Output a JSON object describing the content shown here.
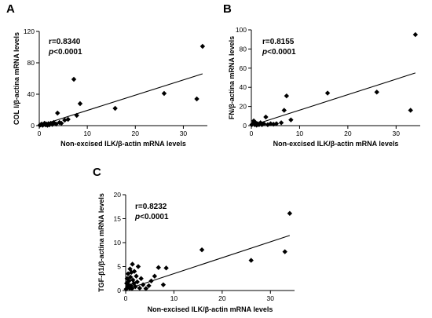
{
  "chart_data": [
    {
      "type": "scatter",
      "panel_label": "A",
      "xlabel": "Non-excised ILK/β-actin mRNA levels",
      "ylabel": "COL I/β-actina mRNA levels",
      "xlim": [
        0,
        35
      ],
      "ylim": [
        0,
        120
      ],
      "xticks": [
        "0",
        "10",
        "20",
        "30"
      ],
      "yticks": [
        "0",
        "40",
        "80",
        "120"
      ],
      "x_tick_values": [
        0,
        10,
        20,
        30
      ],
      "y_tick_values": [
        0,
        40,
        80,
        120
      ],
      "stats": {
        "r": "r=0.8340",
        "p_letter": "p",
        "p_rest": "<0.0001"
      },
      "regression": {
        "x": [
          0,
          34
        ],
        "y": [
          0,
          66
        ]
      },
      "points": [
        {
          "x": 0.1,
          "y": 0.5
        },
        {
          "x": 0.3,
          "y": 1
        },
        {
          "x": 0.5,
          "y": 2
        },
        {
          "x": 0.7,
          "y": 0.5
        },
        {
          "x": 0.9,
          "y": 1.5
        },
        {
          "x": 1.1,
          "y": 3
        },
        {
          "x": 1.3,
          "y": 1
        },
        {
          "x": 1.5,
          "y": 2
        },
        {
          "x": 1.7,
          "y": 0.5
        },
        {
          "x": 1.9,
          "y": 2.5
        },
        {
          "x": 2.1,
          "y": 1
        },
        {
          "x": 2.4,
          "y": 3
        },
        {
          "x": 2.7,
          "y": 1.5
        },
        {
          "x": 3.0,
          "y": 4
        },
        {
          "x": 3.5,
          "y": 2
        },
        {
          "x": 3.8,
          "y": 16
        },
        {
          "x": 4.2,
          "y": 4
        },
        {
          "x": 4.6,
          "y": 3
        },
        {
          "x": 5.3,
          "y": 7
        },
        {
          "x": 6.0,
          "y": 8
        },
        {
          "x": 7.2,
          "y": 59
        },
        {
          "x": 7.8,
          "y": 13
        },
        {
          "x": 8.5,
          "y": 28
        },
        {
          "x": 15.8,
          "y": 22
        },
        {
          "x": 26.0,
          "y": 41
        },
        {
          "x": 32.8,
          "y": 34
        },
        {
          "x": 34.0,
          "y": 101
        }
      ]
    },
    {
      "type": "scatter",
      "panel_label": "B",
      "xlabel": "Non-excised ILK/β-actin mRNA levels",
      "ylabel": "FN/β-actina mRNA levels",
      "xlim": [
        0,
        35
      ],
      "ylim": [
        0,
        100
      ],
      "xticks": [
        "0",
        "10",
        "20",
        "30"
      ],
      "yticks": [
        "0",
        "20",
        "40",
        "60",
        "80",
        "100"
      ],
      "x_tick_values": [
        0,
        10,
        20,
        30
      ],
      "y_tick_values": [
        0,
        20,
        40,
        60,
        80,
        100
      ],
      "stats": {
        "r": "r=0.8155",
        "p_letter": "p",
        "p_rest": "<0.0001"
      },
      "regression": {
        "x": [
          0,
          34
        ],
        "y": [
          0,
          55
        ]
      },
      "points": [
        {
          "x": 0.1,
          "y": 1
        },
        {
          "x": 0.3,
          "y": 2
        },
        {
          "x": 0.5,
          "y": 5
        },
        {
          "x": 0.7,
          "y": 1
        },
        {
          "x": 0.9,
          "y": 3
        },
        {
          "x": 1.1,
          "y": 0.5
        },
        {
          "x": 1.3,
          "y": 2
        },
        {
          "x": 1.6,
          "y": 1
        },
        {
          "x": 1.9,
          "y": 3
        },
        {
          "x": 2.2,
          "y": 1
        },
        {
          "x": 2.6,
          "y": 2
        },
        {
          "x": 3.0,
          "y": 9
        },
        {
          "x": 3.4,
          "y": 1
        },
        {
          "x": 4.0,
          "y": 2
        },
        {
          "x": 4.6,
          "y": 1.5
        },
        {
          "x": 5.2,
          "y": 2
        },
        {
          "x": 6.2,
          "y": 3
        },
        {
          "x": 6.8,
          "y": 16
        },
        {
          "x": 7.3,
          "y": 31
        },
        {
          "x": 8.2,
          "y": 6
        },
        {
          "x": 15.8,
          "y": 34
        },
        {
          "x": 26.0,
          "y": 35
        },
        {
          "x": 33.0,
          "y": 16
        },
        {
          "x": 34.0,
          "y": 95
        }
      ]
    },
    {
      "type": "scatter",
      "panel_label": "C",
      "xlabel": "Non-excised ILK/β-actin mRNA levels",
      "ylabel": "TGF-β1/β-actina mRNA levels",
      "xlim": [
        0,
        35
      ],
      "ylim": [
        0,
        20
      ],
      "xticks": [
        "0",
        "10",
        "20",
        "30"
      ],
      "yticks": [
        "0",
        "5",
        "10",
        "15",
        "20"
      ],
      "x_tick_values": [
        0,
        10,
        20,
        30
      ],
      "y_tick_values": [
        0,
        5,
        10,
        15,
        20
      ],
      "stats": {
        "r": "r=0.8232",
        "p_letter": "p",
        "p_rest": "<0.0001"
      },
      "regression": {
        "x": [
          0,
          34
        ],
        "y": [
          0.2,
          11.5
        ]
      },
      "points": [
        {
          "x": 0.1,
          "y": 0.3
        },
        {
          "x": 0.2,
          "y": 1.5
        },
        {
          "x": 0.3,
          "y": 2.5
        },
        {
          "x": 0.4,
          "y": 0.8
        },
        {
          "x": 0.5,
          "y": 3.5
        },
        {
          "x": 0.6,
          "y": 1.2
        },
        {
          "x": 0.7,
          "y": 2.0
        },
        {
          "x": 0.8,
          "y": 0.5
        },
        {
          "x": 0.9,
          "y": 4.5
        },
        {
          "x": 1.0,
          "y": 2.8
        },
        {
          "x": 1.1,
          "y": 1.0
        },
        {
          "x": 1.2,
          "y": 3.8
        },
        {
          "x": 1.3,
          "y": 0.4
        },
        {
          "x": 1.4,
          "y": 5.5
        },
        {
          "x": 1.5,
          "y": 2.2
        },
        {
          "x": 1.7,
          "y": 1.5
        },
        {
          "x": 1.8,
          "y": 4.0
        },
        {
          "x": 2.0,
          "y": 0.8
        },
        {
          "x": 2.2,
          "y": 3.0
        },
        {
          "x": 2.4,
          "y": 1.8
        },
        {
          "x": 2.6,
          "y": 5.0
        },
        {
          "x": 2.9,
          "y": 0.5
        },
        {
          "x": 3.2,
          "y": 2.5
        },
        {
          "x": 3.6,
          "y": 1.2
        },
        {
          "x": 4.2,
          "y": 0.4
        },
        {
          "x": 4.8,
          "y": 1.0
        },
        {
          "x": 5.3,
          "y": 2.0
        },
        {
          "x": 6.0,
          "y": 3.0
        },
        {
          "x": 6.8,
          "y": 4.8
        },
        {
          "x": 7.8,
          "y": 1.2
        },
        {
          "x": 8.4,
          "y": 4.7
        },
        {
          "x": 15.8,
          "y": 8.5
        },
        {
          "x": 26.0,
          "y": 6.3
        },
        {
          "x": 33.0,
          "y": 8.1
        },
        {
          "x": 34.0,
          "y": 16.1
        }
      ]
    }
  ]
}
